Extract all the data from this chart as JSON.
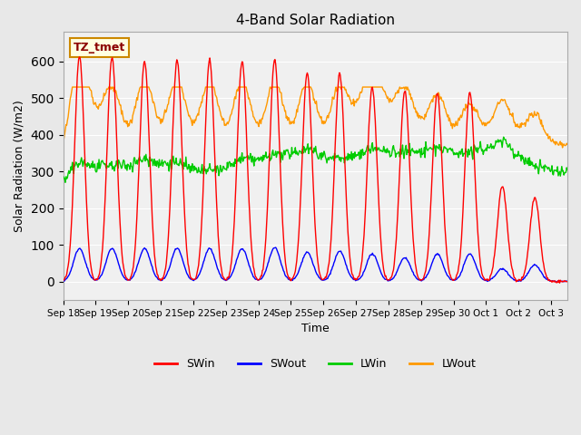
{
  "title": "4-Band Solar Radiation",
  "ylabel": "Solar Radiation (W/m2)",
  "xlabel": "Time",
  "annotation": "TZ_tmet",
  "ylim": [
    -50,
    680
  ],
  "bg_color": "#e8e8e8",
  "plot_bg": "#f0f0f0",
  "colors": {
    "SWin": "#ff0000",
    "SWout": "#0000ff",
    "LWin": "#00cc00",
    "LWout": "#ff9900"
  },
  "x_tick_labels": [
    "Sep 18",
    "Sep 19",
    "Sep 20",
    "Sep 21",
    "Sep 22",
    "Sep 23",
    "Sep 24",
    "Sep 25",
    "Sep 26",
    "Sep 27",
    "Sep 28",
    "Sep 29",
    "Sep 30",
    "Oct 1",
    "Oct 2",
    "Oct 3"
  ],
  "n_days": 15,
  "n_points": 720,
  "seed": 42
}
